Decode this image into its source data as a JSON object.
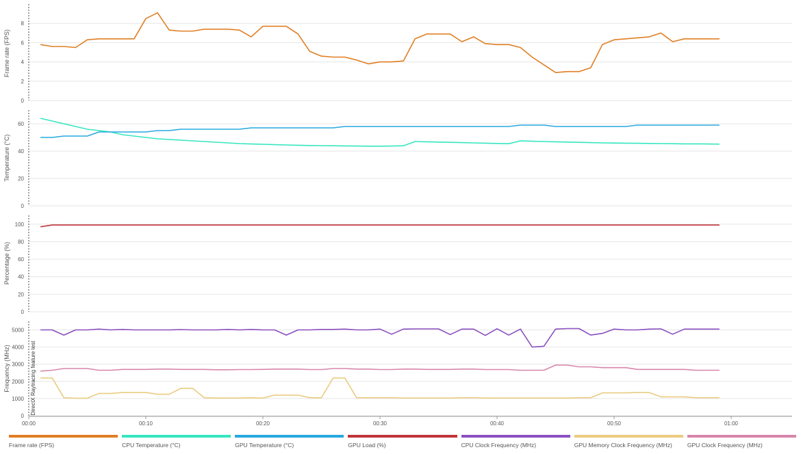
{
  "chart_data": {
    "type": "line",
    "x": [
      1,
      2,
      3,
      4,
      5,
      6,
      7,
      8,
      9,
      10,
      11,
      12,
      13,
      14,
      15,
      16,
      17,
      18,
      19,
      20,
      21,
      22,
      23,
      24,
      25,
      26,
      27,
      28,
      29,
      30,
      31,
      32,
      33,
      34,
      35,
      36,
      37,
      38,
      39,
      40,
      41,
      42,
      43,
      44,
      45,
      46,
      47,
      48,
      49,
      50,
      51,
      52,
      53,
      54,
      55,
      56,
      57,
      58,
      59
    ],
    "xlim": [
      0,
      65
    ],
    "x_ticks": [
      "00:00",
      "00:10",
      "00:20",
      "00:30",
      "00:40",
      "00:50",
      "01:00"
    ],
    "x_tick_values": [
      0,
      10,
      20,
      30,
      40,
      50,
      60
    ],
    "annotation": "DirectX Raytracing feature test",
    "panels": [
      {
        "ylabel": "Frame rate (FPS)",
        "ylim": [
          0,
          10
        ],
        "yticks": [
          "0",
          "2",
          "4",
          "6",
          "8"
        ],
        "ytick_values": [
          0,
          2,
          4,
          6,
          8
        ],
        "series_ids": [
          "fps"
        ]
      },
      {
        "ylabel": "Temperature (°C)",
        "ylim": [
          0,
          70
        ],
        "yticks": [
          "0",
          "20",
          "40",
          "60"
        ],
        "ytick_values": [
          0,
          20,
          40,
          60
        ],
        "series_ids": [
          "cpu_temp",
          "gpu_temp"
        ]
      },
      {
        "ylabel": "Percentage (%)",
        "ylim": [
          0,
          110
        ],
        "yticks": [
          "0",
          "20",
          "40",
          "60",
          "80",
          "100"
        ],
        "ytick_values": [
          0,
          20,
          40,
          60,
          80,
          100
        ],
        "series_ids": [
          "gpu_load"
        ]
      },
      {
        "ylabel": "Frequency (MHz)",
        "ylim": [
          0,
          5500
        ],
        "yticks": [
          "0",
          "1000",
          "2000",
          "3000",
          "4000",
          "5000"
        ],
        "ytick_values": [
          0,
          1000,
          2000,
          3000,
          4000,
          5000
        ],
        "series_ids": [
          "cpu_clock",
          "gpu_clock",
          "gpu_mem_clock"
        ]
      }
    ],
    "series": [
      {
        "id": "fps",
        "name": "Frame rate (FPS)",
        "color": "#e07e22",
        "values": [
          5.8,
          5.6,
          5.6,
          5.5,
          6.3,
          6.4,
          6.4,
          6.4,
          6.4,
          8.5,
          9.1,
          7.3,
          7.2,
          7.2,
          7.4,
          7.4,
          7.4,
          7.3,
          6.6,
          7.7,
          7.7,
          7.7,
          6.9,
          5.1,
          4.6,
          4.5,
          4.5,
          4.2,
          3.8,
          4.0,
          4.0,
          4.1,
          6.4,
          6.9,
          6.9,
          6.9,
          6.1,
          6.6,
          5.9,
          5.8,
          5.8,
          5.5,
          4.5,
          3.7,
          2.9,
          3.0,
          3.0,
          3.4,
          5.8,
          6.3,
          6.4,
          6.5,
          6.6,
          7.0,
          6.1,
          6.4,
          6.4,
          6.4,
          6.4
        ]
      },
      {
        "id": "cpu_temp",
        "name": "CPU Temperature (°C)",
        "color": "#35e6bf",
        "values": [
          64,
          62,
          60,
          58,
          56,
          55,
          54,
          52,
          51,
          50,
          49,
          48.5,
          48,
          47.5,
          47,
          46.5,
          46,
          45.5,
          45.2,
          45,
          44.7,
          44.5,
          44.3,
          44.1,
          44,
          43.9,
          43.8,
          43.7,
          43.6,
          43.6,
          43.7,
          43.9,
          47,
          46.8,
          46.6,
          46.4,
          46.2,
          46,
          45.8,
          45.6,
          45.4,
          47.5,
          47.2,
          47,
          46.8,
          46.6,
          46.4,
          46.2,
          46,
          45.9,
          45.8,
          45.7,
          45.6,
          45.5,
          45.4,
          45.3,
          45.3,
          45.2,
          45.1
        ]
      },
      {
        "id": "gpu_temp",
        "name": "GPU Temperature (°C)",
        "color": "#27a8e0",
        "values": [
          50,
          50,
          51,
          51,
          51,
          54,
          54,
          54,
          54,
          54,
          55,
          55,
          56,
          56,
          56,
          56,
          56,
          56,
          57,
          57,
          57,
          57,
          57,
          57,
          57,
          57,
          58,
          58,
          58,
          58,
          58,
          58,
          58,
          58,
          58,
          58,
          58,
          58,
          58,
          58,
          58,
          59,
          59,
          59,
          58,
          58,
          58,
          58,
          58,
          58,
          58,
          59,
          59,
          59,
          59,
          59,
          59,
          59,
          59
        ]
      },
      {
        "id": "gpu_load",
        "name": "GPU Load (%)",
        "color": "#c0343a",
        "values": [
          97,
          99,
          99,
          99,
          99,
          99,
          99,
          99,
          99,
          99,
          99,
          99,
          99,
          99,
          99,
          99,
          99,
          99,
          99,
          99,
          99,
          99,
          99,
          99,
          99,
          99,
          99,
          99,
          99,
          99,
          99,
          99,
          99,
          99,
          99,
          99,
          99,
          99,
          99,
          99,
          99,
          99,
          99,
          99,
          99,
          99,
          99,
          99,
          99,
          99,
          99,
          99,
          99,
          99,
          99,
          99,
          99,
          99,
          99
        ]
      },
      {
        "id": "cpu_clock",
        "name": "CPU Clock Frequency (MHz)",
        "color": "#8a4fc0",
        "values": [
          5000,
          5000,
          4700,
          5000,
          5000,
          5050,
          5000,
          5030,
          5000,
          5000,
          5000,
          5000,
          5020,
          5000,
          5000,
          5000,
          5030,
          5000,
          5030,
          5000,
          5000,
          4700,
          5000,
          5000,
          5030,
          5030,
          5050,
          5000,
          5000,
          5050,
          4750,
          5050,
          5060,
          5060,
          5060,
          4730,
          5050,
          5050,
          4680,
          5070,
          4700,
          5050,
          4000,
          4050,
          5050,
          5080,
          5080,
          4700,
          4800,
          5050,
          5000,
          5000,
          5050,
          5060,
          4750,
          5050,
          5050,
          5050,
          5050
        ]
      },
      {
        "id": "gpu_mem_clock",
        "name": "GPU Memory Clock Frequency (MHz)",
        "color": "#ebcb80",
        "values": [
          2200,
          2200,
          1050,
          1020,
          1020,
          1300,
          1300,
          1350,
          1350,
          1350,
          1250,
          1250,
          1600,
          1600,
          1050,
          1030,
          1030,
          1030,
          1050,
          1030,
          1200,
          1200,
          1200,
          1050,
          1050,
          2200,
          2200,
          1050,
          1050,
          1050,
          1050,
          1030,
          1030,
          1030,
          1030,
          1030,
          1050,
          1050,
          1030,
          1030,
          1030,
          1030,
          1030,
          1030,
          1030,
          1030,
          1050,
          1050,
          1330,
          1330,
          1330,
          1350,
          1350,
          1100,
          1100,
          1100,
          1050,
          1050,
          1050
        ]
      },
      {
        "id": "gpu_clock",
        "name": "GPU Clock Frequency (MHz)",
        "color": "#d885ab",
        "values": [
          2600,
          2650,
          2750,
          2750,
          2750,
          2650,
          2650,
          2700,
          2700,
          2700,
          2720,
          2720,
          2700,
          2700,
          2700,
          2680,
          2680,
          2690,
          2690,
          2700,
          2720,
          2720,
          2720,
          2690,
          2690,
          2750,
          2750,
          2720,
          2720,
          2690,
          2690,
          2720,
          2720,
          2700,
          2700,
          2700,
          2720,
          2720,
          2690,
          2690,
          2690,
          2650,
          2650,
          2650,
          2950,
          2950,
          2850,
          2850,
          2800,
          2800,
          2800,
          2700,
          2700,
          2700,
          2700,
          2700,
          2650,
          2650,
          2650
        ]
      }
    ]
  },
  "legend": {
    "items": [
      {
        "label": "Frame rate (FPS)",
        "color": "#e07e22"
      },
      {
        "label": "CPU Temperature (°C)",
        "color": "#35e6bf"
      },
      {
        "label": "GPU Temperature (°C)",
        "color": "#27a8e0"
      },
      {
        "label": "GPU Load (%)",
        "color": "#c0343a"
      },
      {
        "label": "CPU Clock Frequency (MHz)",
        "color": "#8a4fc0"
      },
      {
        "label": "GPU Memory Clock Frequency (MHz)",
        "color": "#ebcb80"
      },
      {
        "label": "GPU Clock Frequency (MHz)",
        "color": "#d885ab"
      }
    ]
  }
}
